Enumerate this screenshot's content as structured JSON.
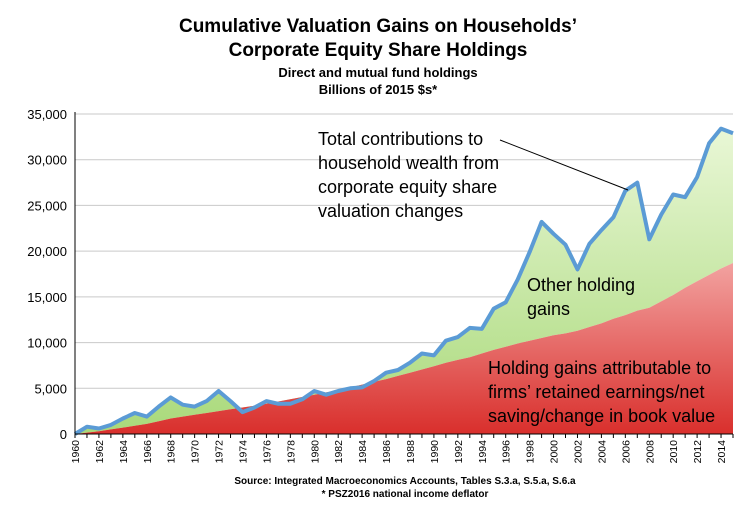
{
  "chart_data": {
    "type": "area",
    "title_lines": [
      "Cumulative Valuation Gains on Households’",
      "Corporate Equity Share Holdings"
    ],
    "subtitle_lines": [
      "Direct and mutual fund holdings",
      "Billions of 2015 $s*"
    ],
    "ylim": [
      0,
      35000
    ],
    "yticks": [
      "0",
      "5,000",
      "10,000",
      "15,000",
      "20,000",
      "25,000",
      "30,000",
      "35,000"
    ],
    "xlim": [
      1960,
      2015
    ],
    "xticks": [
      "1960",
      "1962",
      "1964",
      "1966",
      "1968",
      "1970",
      "1972",
      "1974",
      "1976",
      "1978",
      "1980",
      "1982",
      "1984",
      "1986",
      "1988",
      "1990",
      "1992",
      "1994",
      "1996",
      "1998",
      "2000",
      "2002",
      "2004",
      "2006",
      "2008",
      "2010",
      "2012",
      "2014"
    ],
    "grid": true,
    "x": [
      1960,
      1961,
      1962,
      1963,
      1964,
      1965,
      1966,
      1967,
      1968,
      1969,
      1970,
      1971,
      1972,
      1973,
      1974,
      1975,
      1976,
      1977,
      1978,
      1979,
      1980,
      1981,
      1982,
      1983,
      1984,
      1985,
      1986,
      1987,
      1988,
      1989,
      1990,
      1991,
      1992,
      1993,
      1994,
      1995,
      1996,
      1997,
      1998,
      1999,
      2000,
      2001,
      2002,
      2003,
      2004,
      2005,
      2006,
      2007,
      2008,
      2009,
      2010,
      2011,
      2012,
      2013,
      2014,
      2015
    ],
    "series": [
      {
        "name": "Holding gains attributable to firms’ retained earnings/net saving/change in book value",
        "color": "#e0413f",
        "values": [
          0,
          150,
          300,
          500,
          700,
          900,
          1100,
          1400,
          1700,
          1900,
          2100,
          2300,
          2500,
          2700,
          2900,
          3100,
          3300,
          3550,
          3800,
          4050,
          4300,
          4550,
          4800,
          5100,
          5400,
          5700,
          6000,
          6350,
          6700,
          7050,
          7400,
          7800,
          8100,
          8400,
          8800,
          9200,
          9550,
          9900,
          10200,
          10500,
          10800,
          11000,
          11300,
          11700,
          12100,
          12600,
          13000,
          13500,
          13800,
          14500,
          15200,
          16000,
          16700,
          17400,
          18100,
          18700
        ]
      },
      {
        "name": "Total contributions to household wealth from corporate equity share valuation changes",
        "color": "#5b9bd5",
        "values": [
          0,
          800,
          600,
          1000,
          1700,
          2300,
          1900,
          3000,
          4000,
          3200,
          3000,
          3600,
          4700,
          3600,
          2400,
          2900,
          3600,
          3300,
          3300,
          3800,
          4700,
          4300,
          4700,
          5000,
          5100,
          5800,
          6700,
          7000,
          7800,
          8800,
          8600,
          10200,
          10600,
          11600,
          11500,
          13700,
          14400,
          16900,
          19900,
          23200,
          21900,
          20700,
          18000,
          20800,
          22300,
          23700,
          26600,
          27500,
          21300,
          24000,
          26200,
          25900,
          28100,
          31800,
          33400,
          32900
        ]
      }
    ],
    "fill_colors": {
      "gains_band": "#c8e8a0",
      "retained_band": "#e0413f"
    },
    "annotations": {
      "total_label": [
        "Total contributions to",
        "household wealth from",
        "corporate equity share",
        "valuation changes"
      ],
      "other_label": [
        "Other holding",
        "gains"
      ],
      "retained_label": [
        "Holding gains attributable to",
        "firms’ retained earnings/net",
        "saving/change in book value"
      ]
    },
    "source_lines": [
      "Source: Integrated Macroeconomics Accounts, Tables S.3.a, S.5.a, S.6.a",
      "* PSZ2016 national income deflator"
    ]
  }
}
